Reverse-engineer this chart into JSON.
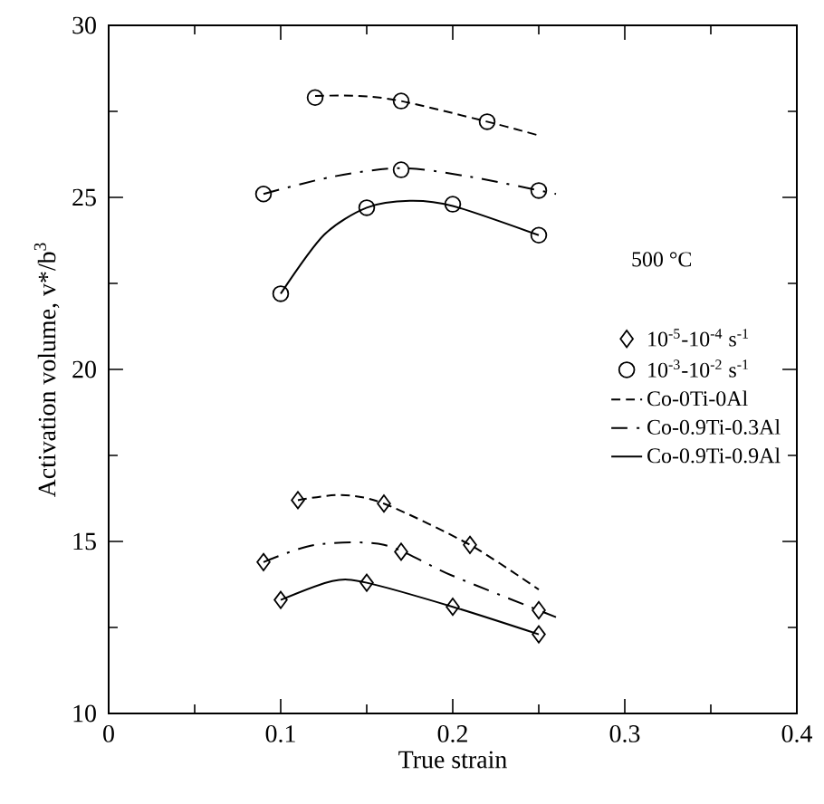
{
  "chart_data": {
    "type": "line",
    "xlabel": "True strain",
    "ylabel": "Activation volume, v*/b$^{3}$",
    "xlim": [
      0,
      0.4
    ],
    "ylim": [
      10,
      30
    ],
    "xticks": [
      0,
      0.1,
      0.2,
      0.3,
      0.4
    ],
    "yticks": [
      10,
      15,
      20,
      25,
      30
    ],
    "grid": false,
    "legend": "right",
    "annotations": [
      "500 °C"
    ],
    "series": [
      {
        "type": "scatter",
        "name": "10$^{-5}$-10$^{-4}$ s$^{-1}$",
        "color": "#000000",
        "marker": "diamond",
        "x": [
          0.11,
          0.16,
          0.21,
          0.09,
          0.17,
          0.25,
          0.1,
          0.15,
          0.2,
          0.25
        ],
        "values": [
          16.2,
          16.1,
          14.9,
          14.4,
          14.7,
          13.0,
          13.3,
          13.8,
          13.1,
          12.3
        ]
      },
      {
        "type": "scatter",
        "name": "10$^{-3}$-10$^{-2}$ s$^{-1}$",
        "color": "#000000",
        "marker": "circle",
        "x": [
          0.12,
          0.17,
          0.22,
          0.09,
          0.17,
          0.25,
          0.1,
          0.15,
          0.2,
          0.25
        ],
        "values": [
          27.9,
          27.8,
          27.2,
          25.1,
          25.8,
          25.2,
          22.2,
          24.7,
          24.8,
          23.9
        ]
      },
      {
        "name": "Co-0Ti-0Al",
        "color": "#000000",
        "line_style": "dashed",
        "marker": "none",
        "x": [
          0.12,
          0.145,
          0.17,
          0.22,
          0.25
        ],
        "values": [
          27.95,
          27.95,
          27.8,
          27.2,
          26.8
        ]
      },
      {
        "name": "Co-0.9Ti-0.3Al",
        "color": "#000000",
        "line_style": "dashdot",
        "marker": "none",
        "x": [
          0.09,
          0.13,
          0.17,
          0.21,
          0.26
        ],
        "values": [
          25.1,
          25.6,
          25.85,
          25.6,
          25.1
        ]
      },
      {
        "name": "Co-0.9Ti-0.9Al",
        "color": "#000000",
        "line_style": "solid",
        "marker": "none",
        "x": [
          0.1,
          0.125,
          0.15,
          0.175,
          0.2,
          0.25
        ],
        "values": [
          22.2,
          23.9,
          24.7,
          24.9,
          24.75,
          23.9
        ]
      },
      {
        "color": "#000000",
        "line_style": "dashed",
        "marker": "none",
        "x": [
          0.11,
          0.135,
          0.16,
          0.21,
          0.25
        ],
        "values": [
          16.2,
          16.35,
          16.1,
          14.9,
          13.6
        ]
      },
      {
        "color": "#000000",
        "line_style": "dashdot",
        "marker": "none",
        "x": [
          0.09,
          0.12,
          0.16,
          0.2,
          0.26
        ],
        "values": [
          14.4,
          14.9,
          14.9,
          14.0,
          12.8
        ]
      },
      {
        "color": "#000000",
        "line_style": "solid",
        "marker": "none",
        "x": [
          0.1,
          0.13,
          0.15,
          0.2,
          0.25
        ],
        "values": [
          13.3,
          13.85,
          13.8,
          13.1,
          12.3
        ]
      }
    ]
  }
}
